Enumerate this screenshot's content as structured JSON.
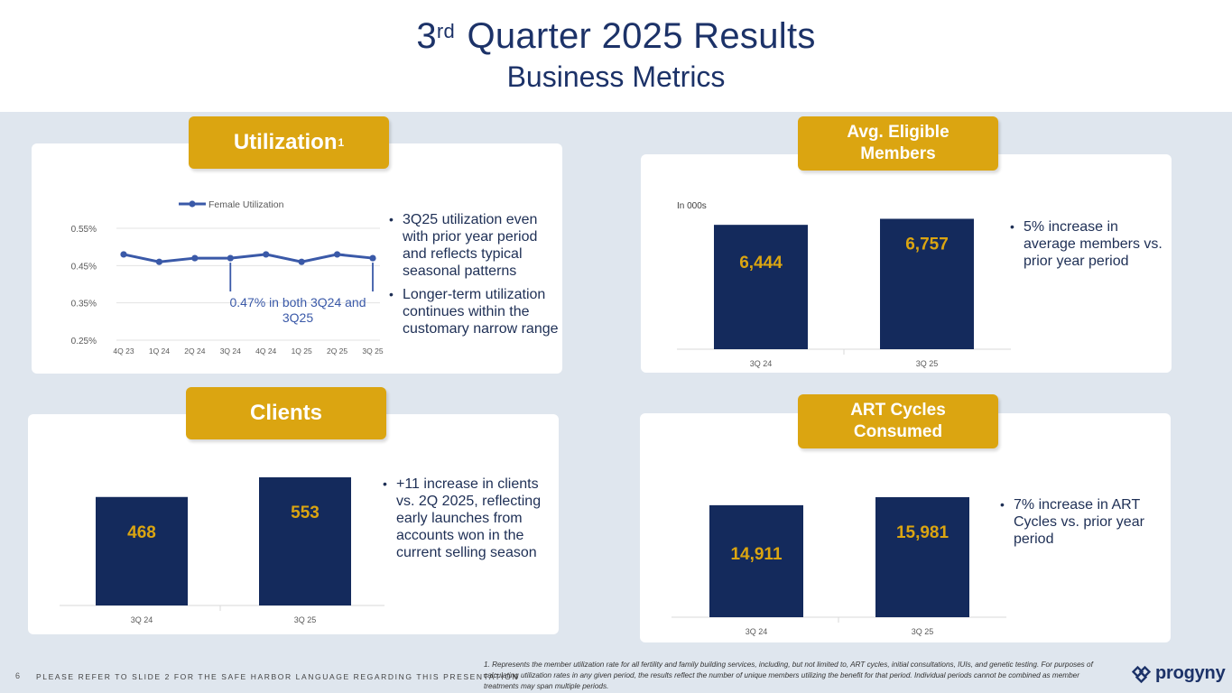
{
  "header": {
    "title_ordinal": "3",
    "title_sup": "rd",
    "title_rest": "Quarter 2025 Results",
    "subtitle": "Business Metrics"
  },
  "utilization": {
    "badge": "Utilization",
    "badge_sup": "1",
    "legend": "Female Utilization",
    "annotation_line1": "0.47% in both 3Q24 and",
    "annotation_line2": "3Q25",
    "bullets": [
      "3Q25 utilization even with prior year period and reflects typical seasonal patterns",
      "Longer-term utilization continues within the customary narrow range"
    ]
  },
  "members": {
    "badge": "Avg. Eligible Members",
    "units": "In 000s",
    "bullets": [
      "5% increase in average members vs. prior year period"
    ]
  },
  "clients": {
    "badge": "Clients",
    "bullets": [
      "+11 increase in clients vs. 2Q 2025, reflecting early launches from accounts won in the current selling season"
    ]
  },
  "art": {
    "badge": "ART Cycles Consumed",
    "bullets": [
      "7% increase in ART Cycles vs. prior year period"
    ]
  },
  "chart_data": [
    {
      "type": "line",
      "name": "utilization",
      "title": "",
      "series": [
        {
          "name": "Female Utilization",
          "values": [
            0.48,
            0.46,
            0.47,
            0.47,
            0.48,
            0.46,
            0.48,
            0.47
          ]
        }
      ],
      "categories": [
        "4Q 23",
        "1Q 24",
        "2Q 24",
        "3Q 24",
        "4Q 24",
        "1Q 25",
        "2Q 25",
        "3Q 25"
      ],
      "yticks": [
        "0.55%",
        "0.45%",
        "0.35%",
        "0.25%"
      ],
      "ylim": [
        0.25,
        0.55
      ]
    },
    {
      "type": "bar",
      "name": "members",
      "categories": [
        "3Q 24",
        "3Q 25"
      ],
      "values": [
        6444,
        6757
      ],
      "labels": [
        "6,444",
        "6,757"
      ],
      "ylim": [
        0,
        7200
      ]
    },
    {
      "type": "bar",
      "name": "clients",
      "categories": [
        "3Q 24",
        "3Q 25"
      ],
      "values": [
        468,
        553
      ],
      "labels": [
        "468",
        "553"
      ],
      "ylim": [
        0,
        580
      ]
    },
    {
      "type": "bar",
      "name": "art",
      "categories": [
        "3Q 24",
        "3Q 25"
      ],
      "values": [
        14911,
        15981
      ],
      "labels": [
        "14,911",
        "15,981"
      ],
      "ylim": [
        0,
        17300
      ]
    }
  ],
  "footer": {
    "page_number": "6",
    "safe_harbor": "PLEASE REFER TO SLIDE 2 FOR THE SAFE HARBOR LANGUAGE REGARDING THIS PRESENTATION",
    "footnote": "1.  Represents the member utilization rate for all fertility and family building services, including, but not limited to, ART cycles, initial consultations, IUIs, and genetic testing. For purposes of calculating utilization rates in any given period, the results reflect the number of unique members utilizing the benefit for that period. Individual periods cannot be combined as member treatments may span multiple periods.",
    "logo_text": "progyny"
  },
  "colors": {
    "navy": "#17285a",
    "gold": "#dba511",
    "line": "#3a59a8",
    "bg": "#dfe6ee"
  }
}
